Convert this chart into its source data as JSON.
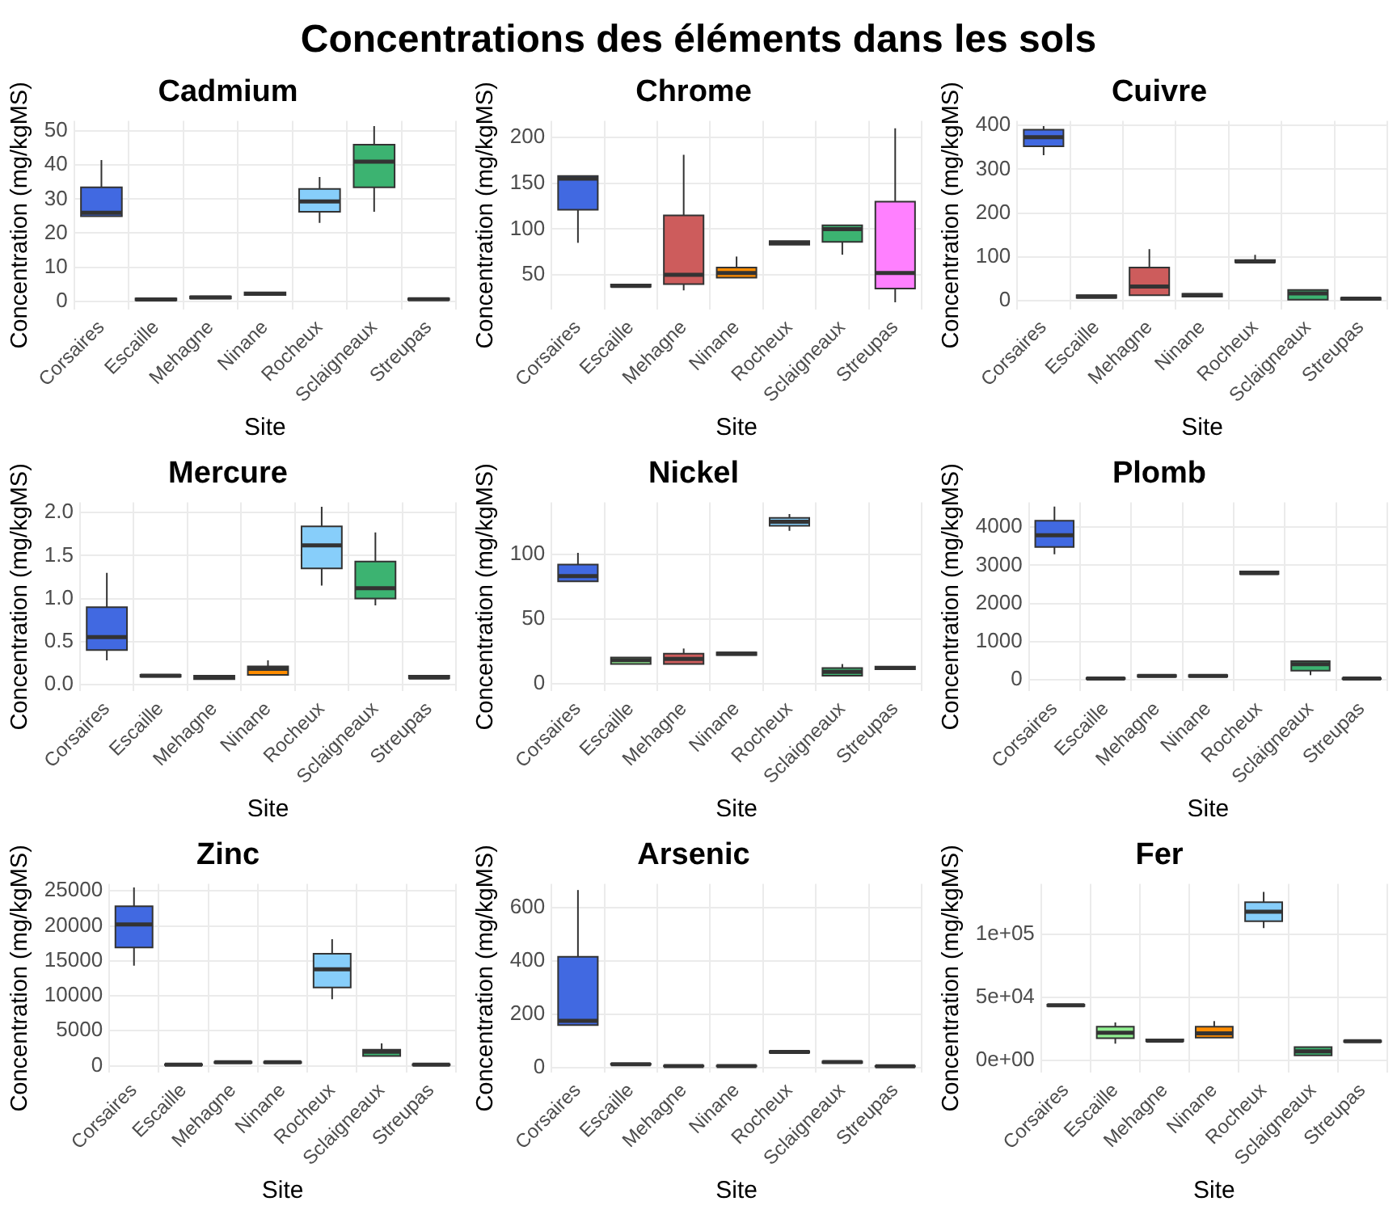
{
  "chart_data": [
    {
      "type": "box",
      "title": "Cadmium",
      "xlabel": "Site",
      "ylabel": "Concentration (mg/kgMS)",
      "annotations": [
        "Concentrations des éléments dans les sols"
      ],
      "grid": true,
      "legend": false,
      "categories": [
        "Corsaires",
        "Escaille",
        "Mehagne",
        "Ninane",
        "Rocheux",
        "Sclaigneaux",
        "Streupas"
      ],
      "colors": [
        "#4169e1",
        "#90ee90",
        "#cd5c5c",
        "#ff8c00",
        "#87cefa",
        "#3cb371",
        "#ff80ff"
      ],
      "ylim": [
        -2.5,
        53
      ],
      "yticks": [
        0,
        10,
        20,
        30,
        40,
        50
      ],
      "boxes": [
        {
          "low": 25,
          "q1": 25,
          "median": 26,
          "q3": 33.5,
          "high": 41.5
        },
        {
          "low": 0.2,
          "q1": 0.3,
          "median": 0.5,
          "q3": 0.8,
          "high": 1
        },
        {
          "low": 0.6,
          "q1": 0.8,
          "median": 1.1,
          "q3": 1.4,
          "high": 1.6
        },
        {
          "low": 1.5,
          "q1": 1.8,
          "median": 2.2,
          "q3": 2.6,
          "high": 3
        },
        {
          "low": 23,
          "q1": 26.3,
          "median": 29.3,
          "q3": 33,
          "high": 36.5
        },
        {
          "low": 26.3,
          "q1": 33.5,
          "median": 41,
          "q3": 46,
          "high": 51.5
        },
        {
          "low": 0.2,
          "q1": 0.4,
          "median": 0.6,
          "q3": 0.8,
          "high": 1
        }
      ]
    },
    {
      "type": "box",
      "title": "Chrome",
      "xlabel": "Site",
      "ylabel": "Concentration (mg/kgMS)",
      "grid": true,
      "legend": false,
      "categories": [
        "Corsaires",
        "Escaille",
        "Mehagne",
        "Ninane",
        "Rocheux",
        "Sclaigneaux",
        "Streupas"
      ],
      "colors": [
        "#4169e1",
        "#90ee90",
        "#cd5c5c",
        "#ff8c00",
        "#87cefa",
        "#3cb371",
        "#ff80ff"
      ],
      "ylim": [
        12,
        218
      ],
      "yticks": [
        50,
        100,
        150,
        200
      ],
      "boxes": [
        {
          "low": 85,
          "q1": 121,
          "median": 155,
          "q3": 158,
          "high": 158
        },
        {
          "low": 36,
          "q1": 37,
          "median": 38,
          "q3": 39.5,
          "high": 41
        },
        {
          "low": 33,
          "q1": 40,
          "median": 50,
          "q3": 115,
          "high": 181
        },
        {
          "low": 47,
          "q1": 47,
          "median": 52,
          "q3": 58,
          "high": 70
        },
        {
          "low": 82,
          "q1": 83,
          "median": 85,
          "q3": 87,
          "high": 88
        },
        {
          "low": 72,
          "q1": 86,
          "median": 100,
          "q3": 104,
          "high": 106
        },
        {
          "low": 20,
          "q1": 35,
          "median": 52,
          "q3": 130,
          "high": 210
        }
      ]
    },
    {
      "type": "box",
      "title": "Cuivre",
      "xlabel": "Site",
      "ylabel": "Concentration (mg/kgMS)",
      "grid": true,
      "legend": false,
      "categories": [
        "Corsaires",
        "Escaille",
        "Mehagne",
        "Ninane",
        "Rocheux",
        "Sclaigneaux",
        "Streupas"
      ],
      "colors": [
        "#4169e1",
        "#90ee90",
        "#cd5c5c",
        "#ff8c00",
        "#87cefa",
        "#3cb371",
        "#ff80ff"
      ],
      "ylim": [
        -20,
        410
      ],
      "yticks": [
        0,
        100,
        200,
        300,
        400
      ],
      "boxes": [
        {
          "low": 332,
          "q1": 352,
          "median": 373,
          "q3": 390,
          "high": 398
        },
        {
          "low": 5,
          "q1": 7,
          "median": 10,
          "q3": 13,
          "high": 15
        },
        {
          "low": 8,
          "q1": 13,
          "median": 33,
          "q3": 76,
          "high": 118
        },
        {
          "low": 8,
          "q1": 10,
          "median": 13,
          "q3": 16,
          "high": 18
        },
        {
          "low": 85,
          "q1": 88,
          "median": 90,
          "q3": 93,
          "high": 105
        },
        {
          "low": 2,
          "q1": 3,
          "median": 17,
          "q3": 25,
          "high": 30
        },
        {
          "low": 2,
          "q1": 3,
          "median": 5,
          "q3": 7,
          "high": 8
        }
      ]
    },
    {
      "type": "box",
      "title": "Mercure",
      "xlabel": "Site",
      "ylabel": "Concentration (mg/kgMS)",
      "grid": true,
      "legend": false,
      "categories": [
        "Corsaires",
        "Escaille",
        "Mehagne",
        "Ninane",
        "Rocheux",
        "Sclaigneaux",
        "Streupas"
      ],
      "colors": [
        "#4169e1",
        "#90ee90",
        "#cd5c5c",
        "#ff8c00",
        "#87cefa",
        "#3cb371",
        "#ff80ff"
      ],
      "ylim": [
        -0.08,
        2.12
      ],
      "yticks": [
        {
          "value": 0,
          "label": "0.0"
        },
        0.5,
        {
          "value": 1,
          "label": "1.0"
        },
        1.5,
        {
          "value": 2,
          "label": "2.0"
        }
      ],
      "boxes": [
        {
          "low": 0.28,
          "q1": 0.4,
          "median": 0.55,
          "q3": 0.9,
          "high": 1.3
        },
        {
          "low": 0.08,
          "q1": 0.09,
          "median": 0.1,
          "q3": 0.11,
          "high": 0.13
        },
        {
          "low": 0.05,
          "q1": 0.06,
          "median": 0.08,
          "q3": 0.1,
          "high": 0.12
        },
        {
          "low": 0.1,
          "q1": 0.11,
          "median": 0.18,
          "q3": 0.21,
          "high": 0.28
        },
        {
          "low": 1.15,
          "q1": 1.35,
          "median": 1.62,
          "q3": 1.84,
          "high": 2.07
        },
        {
          "low": 0.92,
          "q1": 1,
          "median": 1.12,
          "q3": 1.43,
          "high": 1.77
        },
        {
          "low": 0.06,
          "q1": 0.07,
          "median": 0.08,
          "q3": 0.1,
          "high": 0.11
        }
      ]
    },
    {
      "type": "box",
      "title": "Nickel",
      "xlabel": "Site",
      "ylabel": "Concentration (mg/kgMS)",
      "grid": true,
      "legend": false,
      "categories": [
        "Corsaires",
        "Escaille",
        "Mehagne",
        "Ninane",
        "Rocheux",
        "Sclaigneaux",
        "Streupas"
      ],
      "colors": [
        "#4169e1",
        "#90ee90",
        "#cd5c5c",
        "#ff8c00",
        "#87cefa",
        "#3cb371",
        "#ff80ff"
      ],
      "ylim": [
        -6,
        140
      ],
      "yticks": [
        0,
        50,
        100
      ],
      "boxes": [
        {
          "low": 78,
          "q1": 79,
          "median": 83,
          "q3": 92,
          "high": 101
        },
        {
          "low": 14,
          "q1": 15,
          "median": 18,
          "q3": 20,
          "high": 21
        },
        {
          "low": 14,
          "q1": 15,
          "median": 19,
          "q3": 23,
          "high": 27
        },
        {
          "low": 21,
          "q1": 22,
          "median": 23,
          "q3": 24,
          "high": 25
        },
        {
          "low": 118,
          "q1": 122,
          "median": 125,
          "q3": 128,
          "high": 131
        },
        {
          "low": 5,
          "q1": 6,
          "median": 9,
          "q3": 12,
          "high": 15
        },
        {
          "low": 10,
          "q1": 11,
          "median": 12,
          "q3": 13,
          "high": 14
        }
      ]
    },
    {
      "type": "box",
      "title": "Plomb",
      "xlabel": "Site",
      "ylabel": "Concentration (mg/kgMS)",
      "grid": true,
      "legend": false,
      "categories": [
        "Corsaires",
        "Escaille",
        "Mehagne",
        "Ninane",
        "Rocheux",
        "Sclaigneaux",
        "Streupas"
      ],
      "colors": [
        "#4169e1",
        "#90ee90",
        "#cd5c5c",
        "#ff8c00",
        "#87cefa",
        "#3cb371",
        "#ff80ff"
      ],
      "ylim": [
        -300,
        4650
      ],
      "yticks": [
        0,
        1000,
        2000,
        3000,
        4000
      ],
      "boxes": [
        {
          "low": 3290,
          "q1": 3480,
          "median": 3790,
          "q3": 4170,
          "high": 4540
        },
        {
          "low": 10,
          "q1": 20,
          "median": 30,
          "q3": 50,
          "high": 60
        },
        {
          "low": 60,
          "q1": 80,
          "median": 100,
          "q3": 120,
          "high": 140
        },
        {
          "low": 60,
          "q1": 80,
          "median": 100,
          "q3": 120,
          "high": 140
        },
        {
          "low": 2740,
          "q1": 2770,
          "median": 2800,
          "q3": 2840,
          "high": 2880
        },
        {
          "low": 120,
          "q1": 240,
          "median": 410,
          "q3": 490,
          "high": 530
        },
        {
          "low": 10,
          "q1": 20,
          "median": 30,
          "q3": 40,
          "high": 50
        }
      ]
    },
    {
      "type": "box",
      "title": "Zinc",
      "xlabel": "Site",
      "ylabel": "Concentration (mg/kgMS)",
      "grid": true,
      "legend": false,
      "categories": [
        "Corsaires",
        "Escaille",
        "Mehagne",
        "Ninane",
        "Rocheux",
        "Sclaigneaux",
        "Streupas"
      ],
      "colors": [
        "#4169e1",
        "#90ee90",
        "#cd5c5c",
        "#ff8c00",
        "#87cefa",
        "#3cb371",
        "#ff80ff"
      ],
      "ylim": [
        -1000,
        26000
      ],
      "yticks": [
        0,
        5000,
        10000,
        15000,
        20000,
        25000
      ],
      "boxes": [
        {
          "low": 14300,
          "q1": 16900,
          "median": 20200,
          "q3": 22800,
          "high": 25500
        },
        {
          "low": 50,
          "q1": 100,
          "median": 150,
          "q3": 200,
          "high": 250
        },
        {
          "low": 300,
          "q1": 400,
          "median": 500,
          "q3": 550,
          "high": 600
        },
        {
          "low": 300,
          "q1": 400,
          "median": 500,
          "q3": 550,
          "high": 600
        },
        {
          "low": 9500,
          "q1": 11200,
          "median": 13800,
          "q3": 16000,
          "high": 18100
        },
        {
          "low": 1300,
          "q1": 1400,
          "median": 2000,
          "q3": 2300,
          "high": 3200
        },
        {
          "low": 50,
          "q1": 100,
          "median": 150,
          "q3": 200,
          "high": 250
        }
      ]
    },
    {
      "type": "box",
      "title": "Arsenic",
      "xlabel": "Site",
      "ylabel": "Concentration (mg/kgMS)",
      "grid": true,
      "legend": false,
      "categories": [
        "Corsaires",
        "Escaille",
        "Mehagne",
        "Ninane",
        "Rocheux",
        "Sclaigneaux",
        "Streupas"
      ],
      "colors": [
        "#4169e1",
        "#90ee90",
        "#cd5c5c",
        "#ff8c00",
        "#87cefa",
        "#3cb371",
        "#ff80ff"
      ],
      "ylim": [
        -20,
        690
      ],
      "yticks": [
        0,
        200,
        400,
        600
      ],
      "boxes": [
        {
          "low": 159,
          "q1": 159,
          "median": 175,
          "q3": 416,
          "high": 667
        },
        {
          "low": 8,
          "q1": 10,
          "median": 12,
          "q3": 14,
          "high": 16
        },
        {
          "low": 3,
          "q1": 4,
          "median": 5,
          "q3": 6,
          "high": 7
        },
        {
          "low": 3,
          "q1": 4,
          "median": 5,
          "q3": 6,
          "high": 7
        },
        {
          "low": 52,
          "q1": 55,
          "median": 58,
          "q3": 61,
          "high": 64
        },
        {
          "low": 15,
          "q1": 17,
          "median": 20,
          "q3": 22,
          "high": 24
        },
        {
          "low": 2,
          "q1": 3,
          "median": 4,
          "q3": 5,
          "high": 6
        }
      ]
    },
    {
      "type": "box",
      "title": "Fer",
      "xlabel": "Site",
      "ylabel": "Concentration (mg/kgMS)",
      "grid": true,
      "legend": false,
      "categories": [
        "Corsaires",
        "Escaille",
        "Mehagne",
        "Ninane",
        "Rocheux",
        "Sclaigneaux",
        "Streupas"
      ],
      "colors": [
        "#4169e1",
        "#90ee90",
        "#cd5c5c",
        "#ff8c00",
        "#87cefa",
        "#3cb371",
        "#ff80ff"
      ],
      "ylim": [
        -10000,
        140000
      ],
      "yticks": [
        {
          "value": 0,
          "label": "0e+00"
        },
        {
          "value": 50000,
          "label": "5e+04"
        },
        {
          "value": 100000,
          "label": "1e+05"
        }
      ],
      "boxes": [
        {
          "low": 42500,
          "q1": 43000,
          "median": 43500,
          "q3": 44000,
          "high": 44500
        },
        {
          "low": 13000,
          "q1": 17400,
          "median": 21700,
          "q3": 26600,
          "high": 30000
        },
        {
          "low": 14000,
          "q1": 15000,
          "median": 15500,
          "q3": 16500,
          "high": 17000
        },
        {
          "low": 17000,
          "q1": 17900,
          "median": 21200,
          "q3": 26600,
          "high": 31000
        },
        {
          "low": 104900,
          "q1": 110300,
          "median": 117900,
          "q3": 125500,
          "high": 133700
        },
        {
          "low": 2000,
          "q1": 3800,
          "median": 7000,
          "q3": 10300,
          "high": 12000
        },
        {
          "low": 14000,
          "q1": 14500,
          "median": 15000,
          "q3": 15500,
          "high": 16500
        }
      ]
    }
  ]
}
